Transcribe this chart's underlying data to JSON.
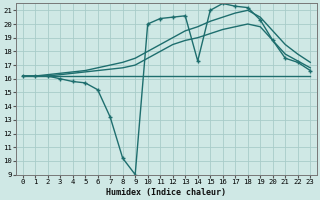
{
  "xlabel": "Humidex (Indice chaleur)",
  "xlim": [
    -0.5,
    23.5
  ],
  "ylim": [
    9,
    21.5
  ],
  "yticks": [
    9,
    10,
    11,
    12,
    13,
    14,
    15,
    16,
    17,
    18,
    19,
    20,
    21
  ],
  "xticks": [
    0,
    1,
    2,
    3,
    4,
    5,
    6,
    7,
    8,
    9,
    10,
    11,
    12,
    13,
    14,
    15,
    16,
    17,
    18,
    19,
    20,
    21,
    22,
    23
  ],
  "bg_color": "#cfe8e5",
  "grid_color": "#a8ccc9",
  "line_color": "#1e6e6e",
  "lines": [
    {
      "x": [
        0,
        1,
        2,
        3,
        4,
        5,
        6,
        7,
        8,
        9,
        10,
        11,
        12,
        13,
        14,
        15,
        16,
        17,
        18,
        19,
        20,
        21,
        22,
        23
      ],
      "y": [
        16.2,
        16.2,
        16.2,
        16.2,
        16.2,
        16.2,
        16.2,
        16.2,
        16.2,
        16.2,
        16.2,
        16.2,
        16.2,
        16.2,
        16.2,
        16.2,
        16.2,
        16.2,
        16.2,
        16.2,
        16.2,
        16.2,
        16.2,
        16.2
      ],
      "marker": null,
      "lw": 1.0
    },
    {
      "x": [
        0,
        1,
        2,
        3,
        4,
        5,
        6,
        7,
        8,
        9,
        10,
        11,
        12,
        13,
        14,
        15,
        16,
        17,
        18,
        19,
        20,
        21,
        22,
        23
      ],
      "y": [
        16.2,
        16.2,
        16.2,
        16.0,
        15.8,
        15.7,
        15.2,
        13.2,
        10.2,
        9.0,
        20.0,
        20.4,
        20.5,
        20.6,
        17.3,
        21.0,
        21.5,
        21.3,
        21.2,
        20.3,
        18.8,
        17.5,
        17.2,
        16.6
      ],
      "marker": "+",
      "lw": 1.0
    },
    {
      "x": [
        0,
        1,
        2,
        3,
        4,
        5,
        6,
        7,
        8,
        9,
        10,
        11,
        12,
        13,
        14,
        15,
        16,
        17,
        18,
        19,
        20,
        21,
        22,
        23
      ],
      "y": [
        16.2,
        16.2,
        16.3,
        16.4,
        16.5,
        16.6,
        16.8,
        17.0,
        17.2,
        17.5,
        18.0,
        18.5,
        19.0,
        19.5,
        19.8,
        20.2,
        20.5,
        20.8,
        21.0,
        20.5,
        19.5,
        18.5,
        17.8,
        17.2
      ],
      "marker": null,
      "lw": 1.0
    },
    {
      "x": [
        0,
        1,
        2,
        3,
        4,
        5,
        6,
        7,
        8,
        9,
        10,
        11,
        12,
        13,
        14,
        15,
        16,
        17,
        18,
        19,
        20,
        21,
        22,
        23
      ],
      "y": [
        16.2,
        16.2,
        16.2,
        16.3,
        16.4,
        16.5,
        16.6,
        16.7,
        16.8,
        17.0,
        17.5,
        18.0,
        18.5,
        18.8,
        19.0,
        19.3,
        19.6,
        19.8,
        20.0,
        19.8,
        18.8,
        17.8,
        17.3,
        16.8
      ],
      "marker": null,
      "lw": 1.0
    }
  ]
}
